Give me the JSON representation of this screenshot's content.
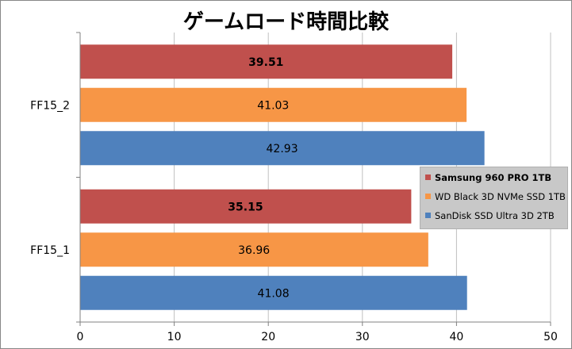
{
  "chart_data": {
    "type": "bar",
    "orientation": "horizontal",
    "title": "ゲームロード時間比較",
    "categories": [
      "FF15_2",
      "FF15_1"
    ],
    "series": [
      {
        "name": "Samsung 960 PRO 1TB",
        "color": "#c0504d",
        "values": [
          39.51,
          35.15
        ],
        "labels": [
          "39.51",
          "35.15"
        ],
        "label_bold": true
      },
      {
        "name": "WD Black 3D NVMe SSD 1TB",
        "color": "#f79646",
        "values": [
          41.03,
          36.96
        ],
        "labels": [
          "41.03",
          "36.96"
        ],
        "label_bold": false
      },
      {
        "name": "SanDisk SSD Ultra 3D 2TB",
        "color": "#4f81bd",
        "values": [
          42.93,
          41.08
        ],
        "labels": [
          "42.93",
          "41.08"
        ],
        "label_bold": false
      }
    ],
    "xlim": [
      0,
      50
    ],
    "xticks": [
      "0",
      "10",
      "20",
      "30",
      "40",
      "50"
    ],
    "grid": true,
    "legend_position": "right"
  }
}
